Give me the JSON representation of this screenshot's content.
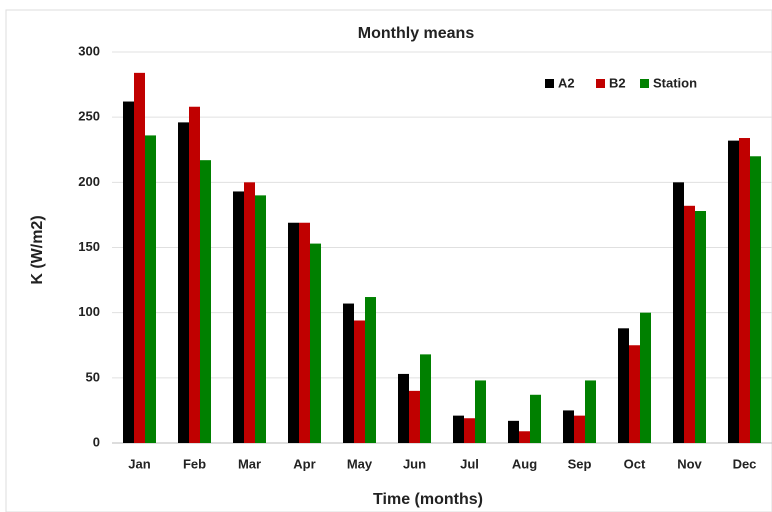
{
  "chart_data": {
    "type": "bar",
    "title": "Monthly means",
    "x_label": "Time (months)",
    "y_label": "K (W/m2)",
    "categories": [
      "Jan",
      "Feb",
      "Mar",
      "Apr",
      "May",
      "Jun",
      "Jul",
      "Aug",
      "Sep",
      "Oct",
      "Nov",
      "Dec"
    ],
    "series": [
      {
        "name": "A2",
        "color": "#000000",
        "values": [
          262,
          246,
          193,
          169,
          107,
          53,
          21,
          17,
          25,
          88,
          200,
          232
        ]
      },
      {
        "name": "B2",
        "color": "#c00000",
        "values": [
          284,
          258,
          200,
          169,
          94,
          40,
          19,
          9,
          21,
          75,
          182,
          234
        ]
      },
      {
        "name": "Station",
        "color": "#008000",
        "values": [
          236,
          217,
          190,
          153,
          112,
          68,
          48,
          37,
          48,
          100,
          178,
          220
        ]
      }
    ],
    "ylim": [
      0,
      300
    ],
    "yticks": [
      0,
      50,
      100,
      150,
      200,
      250,
      300
    ],
    "grid": true,
    "legend": "top-right"
  }
}
